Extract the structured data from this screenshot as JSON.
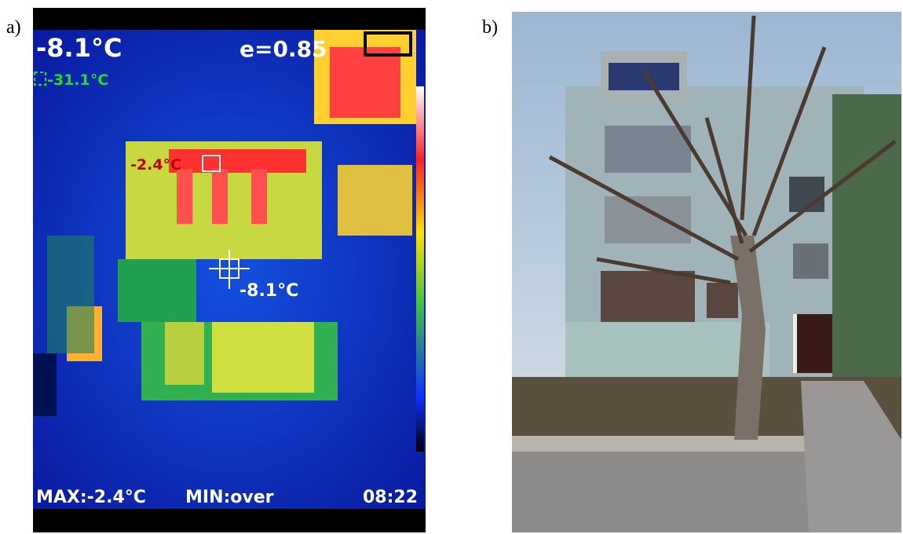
{
  "panels": [
    {
      "label": "a)",
      "overlay": {
        "center_temp": "-8.1°C",
        "emissivity": "e=0.85",
        "box_temp": "-31.1°C",
        "hot_spot": "-2.4°C",
        "crosshair_temp": "-8.1°C",
        "max": "MAX:-2.4°C",
        "min": "MIN:over",
        "time": "08:22"
      }
    },
    {
      "label": "b)"
    }
  ]
}
